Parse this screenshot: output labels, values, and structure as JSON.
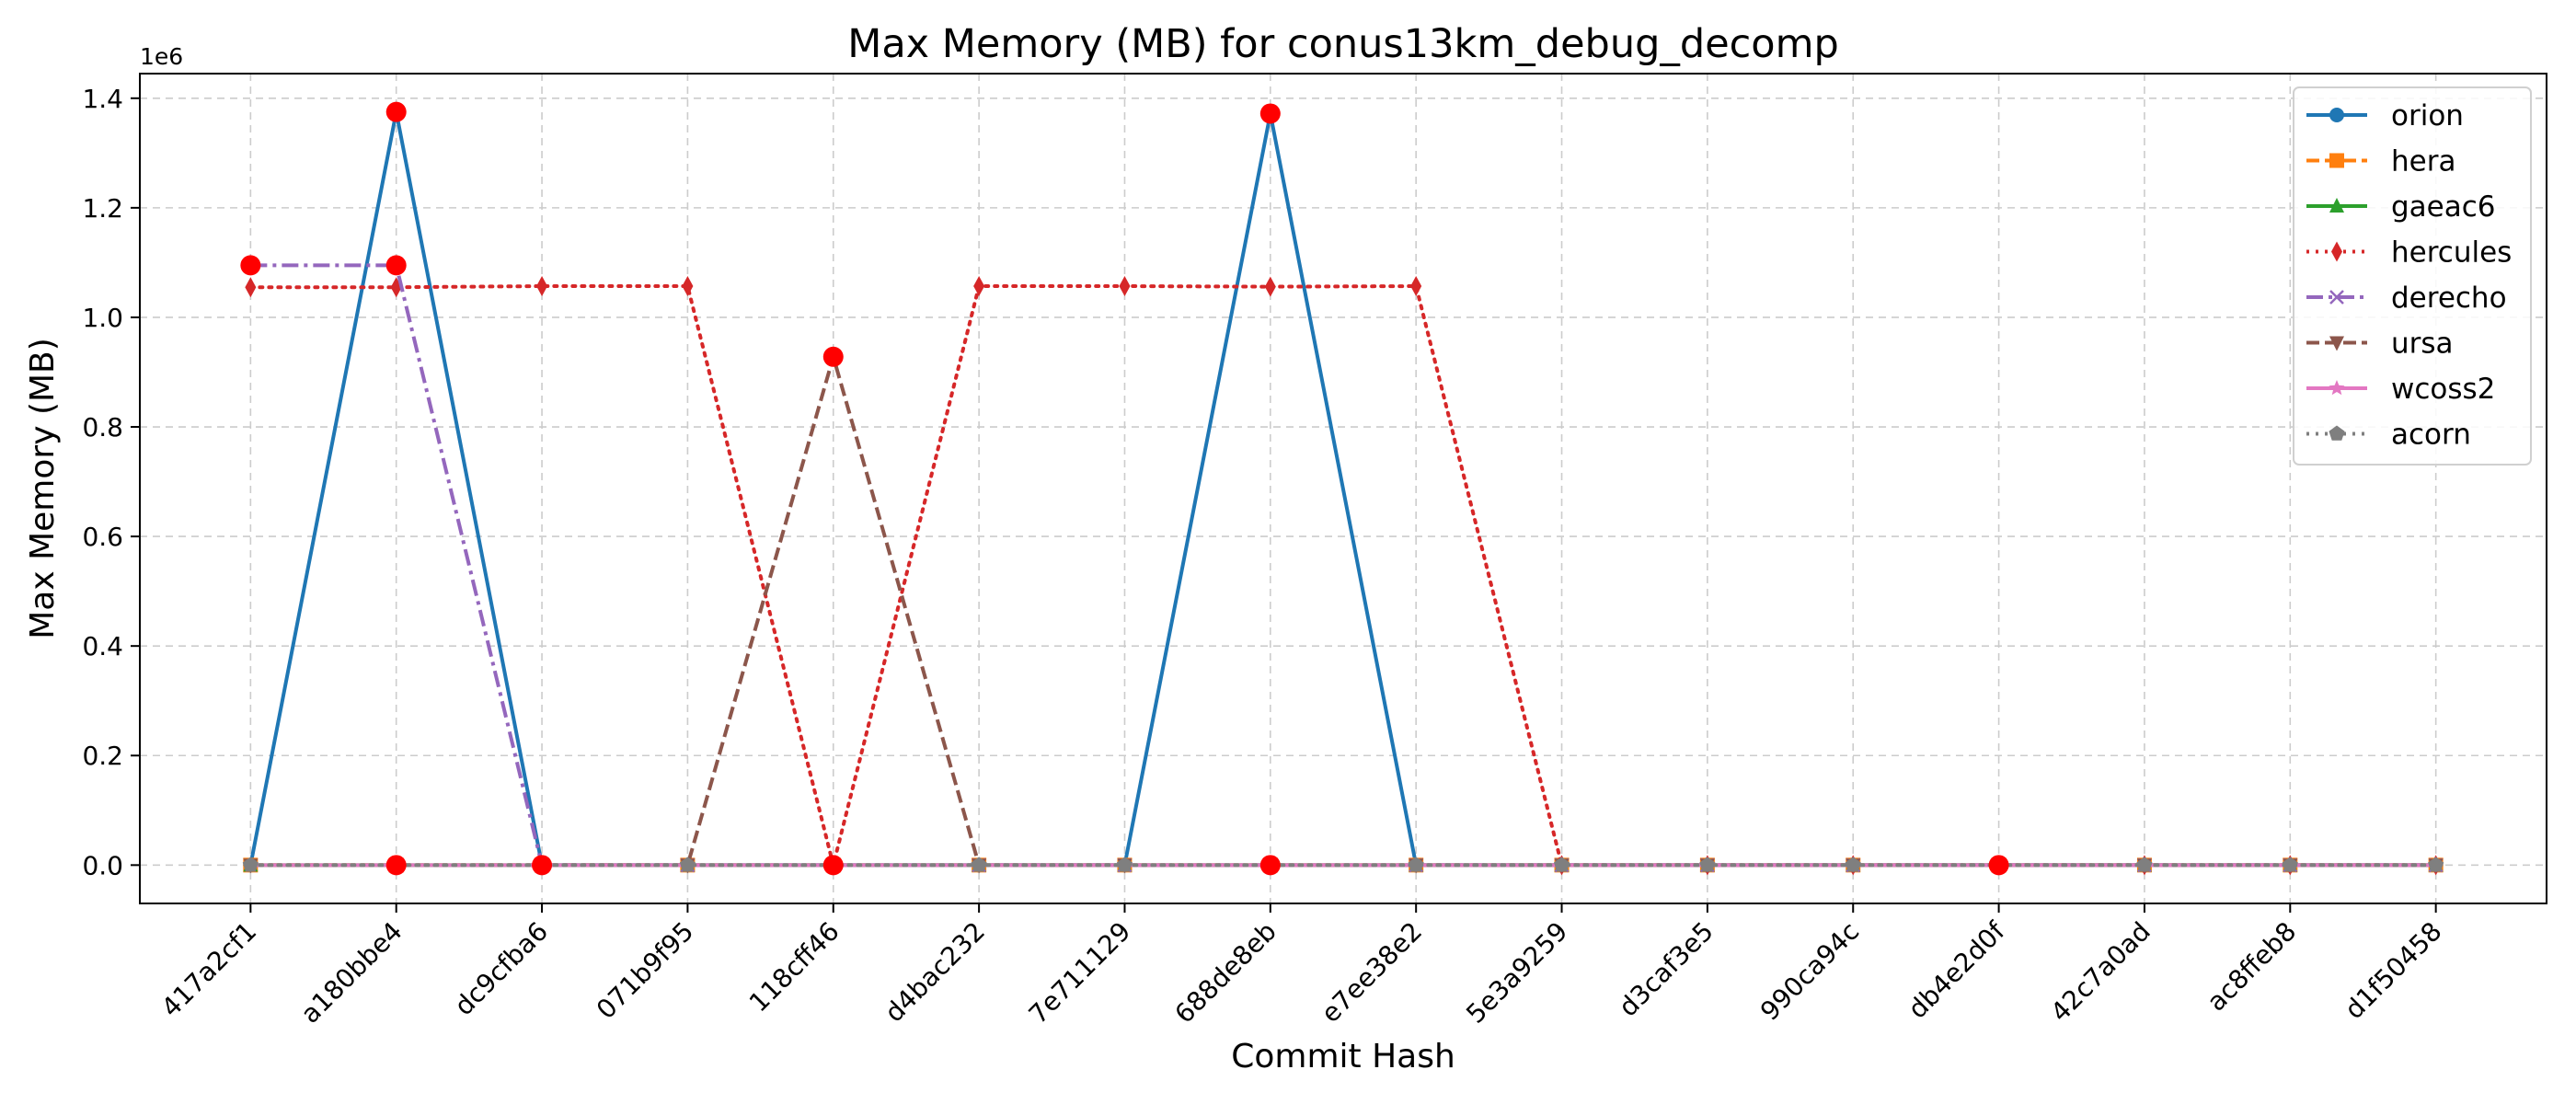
{
  "chart_data": {
    "type": "line",
    "title": "Max Memory (MB) for conus13km_debug_decomp",
    "xlabel": "Commit Hash",
    "ylabel": "Max Memory (MB)",
    "y_offset_label": "1e6",
    "y_ticks": [
      "0.0",
      "0.2",
      "0.4",
      "0.6",
      "0.8",
      "1.0",
      "1.2",
      "1.4"
    ],
    "ylim": [
      -70000,
      1445000
    ],
    "grid": true,
    "legend_position": "top-right",
    "categories": [
      "417a2cf1",
      "a180bbe4",
      "dc9cfba6",
      "071b9f95",
      "118cff46",
      "d4bac232",
      "7e711129",
      "688de8eb",
      "e7ee38e2",
      "5e3a9259",
      "d3caf3e5",
      "990ca94c",
      "db4e2d0f",
      "42c7a0ad",
      "ac8ffeb8",
      "d1f50458"
    ],
    "series": [
      {
        "name": "orion",
        "color": "#1f77b4",
        "marker": "circle",
        "linestyle": "solid",
        "values": [
          0,
          1375000,
          0,
          0,
          0,
          0,
          0,
          1372000,
          0,
          0,
          0,
          0,
          0,
          0,
          0,
          0
        ]
      },
      {
        "name": "hera",
        "color": "#ff7f0e",
        "marker": "square",
        "linestyle": "dashed",
        "values": [
          0,
          0,
          0,
          0,
          0,
          0,
          0,
          0,
          0,
          0,
          0,
          0,
          0,
          0,
          0,
          0
        ]
      },
      {
        "name": "gaeac6",
        "color": "#2ca02c",
        "marker": "triangle-up",
        "linestyle": "solid",
        "values": [
          0,
          0,
          0,
          0,
          0,
          0,
          0,
          0,
          0,
          0,
          0,
          0,
          0,
          0,
          0,
          0
        ]
      },
      {
        "name": "hercules",
        "color": "#d62728",
        "marker": "thin-diamond",
        "linestyle": "dotted",
        "values": [
          1055000,
          1055000,
          1057000,
          1057000,
          0,
          1057000,
          1057000,
          1056000,
          1057000,
          0,
          0,
          0,
          0,
          0,
          0,
          0
        ]
      },
      {
        "name": "derecho",
        "color": "#9467bd",
        "marker": "x",
        "linestyle": "dashdot",
        "values": [
          1095000,
          1095000,
          0,
          0,
          0,
          0,
          0,
          0,
          0,
          0,
          0,
          0,
          0,
          0,
          0,
          0
        ]
      },
      {
        "name": "ursa",
        "color": "#8c564b",
        "marker": "triangle-down",
        "linestyle": "dashed",
        "values": [
          0,
          0,
          0,
          0,
          928000,
          0,
          0,
          0,
          0,
          0,
          0,
          0,
          0,
          0,
          0,
          0
        ]
      },
      {
        "name": "wcoss2",
        "color": "#e377c2",
        "marker": "star",
        "linestyle": "solid",
        "values": [
          0,
          0,
          0,
          0,
          0,
          0,
          0,
          0,
          0,
          0,
          0,
          0,
          0,
          0,
          0,
          0
        ]
      },
      {
        "name": "acorn",
        "color": "#7f7f7f",
        "marker": "pentagon",
        "linestyle": "dotted",
        "values": [
          0,
          0,
          0,
          0,
          0,
          0,
          0,
          0,
          0,
          0,
          0,
          0,
          0,
          0,
          0,
          0
        ]
      }
    ],
    "highlight_points": {
      "color": "#ff0000",
      "points": [
        {
          "category": "417a2cf1",
          "value": 1095000
        },
        {
          "category": "a180bbe4",
          "value": 1375000
        },
        {
          "category": "a180bbe4",
          "value": 1095000
        },
        {
          "category": "a180bbe4",
          "value": 0
        },
        {
          "category": "dc9cfba6",
          "value": 0
        },
        {
          "category": "118cff46",
          "value": 928000
        },
        {
          "category": "118cff46",
          "value": 0
        },
        {
          "category": "688de8eb",
          "value": 1372000
        },
        {
          "category": "688de8eb",
          "value": 0
        },
        {
          "category": "db4e2d0f",
          "value": 0
        }
      ]
    }
  }
}
